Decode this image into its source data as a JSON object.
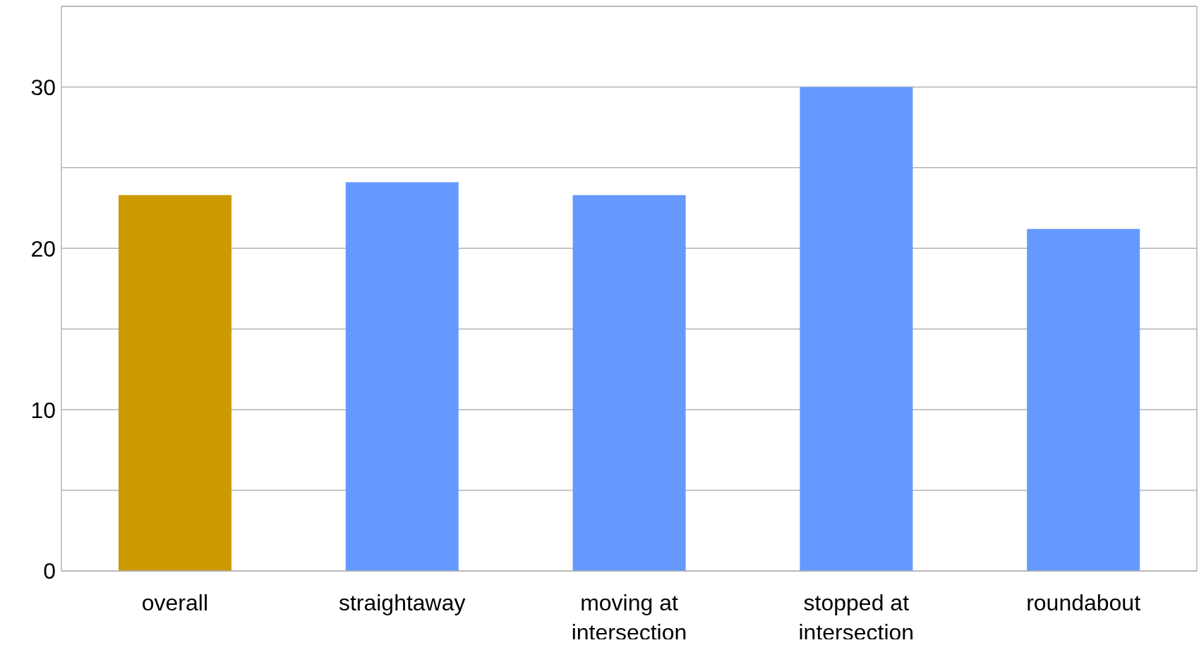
{
  "chart_data": {
    "type": "bar",
    "categories": [
      "overall",
      "straightaway",
      "moving at intersection",
      "stopped at intersection",
      "roundabout"
    ],
    "values": [
      23.3,
      24.1,
      23.3,
      30,
      21.2
    ],
    "colors": [
      "#cc9900",
      "#6699ff",
      "#6699ff",
      "#6699ff",
      "#6699ff"
    ],
    "ylim": [
      0,
      35
    ],
    "yticks": [
      0,
      {
        "value": 5,
        "label": null
      },
      10,
      {
        "value": 15,
        "label": null
      },
      20,
      {
        "value": 25,
        "label": null
      },
      30
    ],
    "grid": "y"
  }
}
